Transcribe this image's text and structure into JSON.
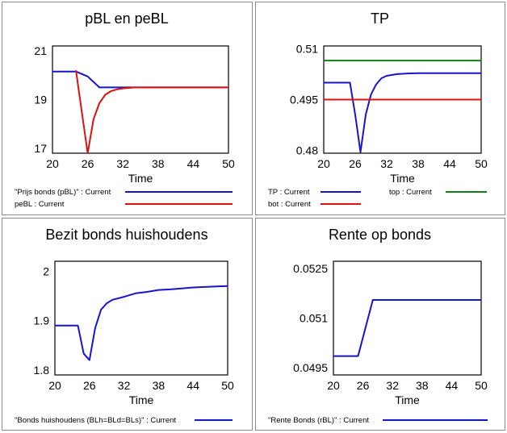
{
  "chart_data": [
    {
      "type": "line",
      "title": "pBL en peBL",
      "xlabel": "Time",
      "xlim": [
        20,
        50
      ],
      "ylim": [
        16.8,
        21.2
      ],
      "xticks": [
        "20",
        "26",
        "32",
        "38",
        "44",
        "50"
      ],
      "yticks": [
        {
          "v": 21,
          "label": "21"
        },
        {
          "v": 19,
          "label": "19"
        },
        {
          "v": 17,
          "label": "17"
        }
      ],
      "series": [
        {
          "name": "\"Prijs bonds (pBL)\" : Current",
          "color": "#1515d0",
          "x": [
            20,
            24,
            26,
            28,
            30,
            32,
            34,
            50
          ],
          "y": [
            20.15,
            20.15,
            19.95,
            19.5,
            19.5,
            19.5,
            19.5,
            19.5
          ]
        },
        {
          "name": "peBL : Current",
          "color": "#e01010",
          "x": [
            24,
            25,
            26,
            27,
            28,
            29,
            30,
            31,
            32,
            33,
            34,
            50
          ],
          "y": [
            20.2,
            18.5,
            16.8,
            18.2,
            18.85,
            19.2,
            19.35,
            19.42,
            19.46,
            19.48,
            19.5,
            19.5
          ]
        }
      ]
    },
    {
      "type": "line",
      "title": "TP",
      "xlabel": "Time",
      "xlim": [
        20,
        50
      ],
      "ylim": [
        0.4792,
        0.5108
      ],
      "xticks": [
        "20",
        "26",
        "32",
        "38",
        "44",
        "50"
      ],
      "yticks": [
        {
          "v": 0.51,
          "label": "0.51"
        },
        {
          "v": 0.495,
          "label": "0.495"
        },
        {
          "v": 0.48,
          "label": "0.48"
        }
      ],
      "series": [
        {
          "name": "TP : Current",
          "color": "#1515d0",
          "x": [
            20,
            25,
            26,
            27,
            28,
            29,
            30,
            31,
            32,
            34,
            36,
            38,
            44,
            50
          ],
          "y": [
            0.5,
            0.5,
            0.4905,
            0.4795,
            0.4905,
            0.4965,
            0.4995,
            0.5013,
            0.502,
            0.5025,
            0.5027,
            0.5028,
            0.5028,
            0.5028
          ]
        },
        {
          "name": "top : Current",
          "color": "#108010",
          "x": [
            20,
            50
          ],
          "y": [
            0.5065,
            0.5065
          ]
        },
        {
          "name": "bot : Current",
          "color": "#e01010",
          "x": [
            20,
            50
          ],
          "y": [
            0.495,
            0.495
          ]
        }
      ]
    },
    {
      "type": "line",
      "title": "Bezit bonds huishoudens",
      "xlabel": "Time",
      "xlim": [
        20,
        50
      ],
      "ylim": [
        1.79,
        2.02
      ],
      "xticks": [
        "20",
        "26",
        "32",
        "38",
        "44",
        "50"
      ],
      "yticks": [
        {
          "v": 2.0,
          "label": "2"
        },
        {
          "v": 1.9,
          "label": "1.9"
        },
        {
          "v": 1.8,
          "label": "1.8"
        }
      ],
      "series": [
        {
          "name": "\"Bonds huishoudens (BLh=BLd=BLs)\" : Current",
          "color": "#1515d0",
          "x": [
            20,
            24,
            25,
            26,
            27,
            28,
            29,
            30,
            32,
            34,
            36,
            38,
            40,
            42,
            44,
            46,
            48,
            50
          ],
          "y": [
            1.89,
            1.89,
            1.833,
            1.82,
            1.885,
            1.922,
            1.935,
            1.942,
            1.948,
            1.955,
            1.958,
            1.962,
            1.963,
            1.965,
            1.967,
            1.968,
            1.969,
            1.97
          ]
        }
      ]
    },
    {
      "type": "line",
      "title": "Rente op bonds",
      "xlabel": "Time",
      "xlim": [
        20,
        50
      ],
      "ylim": [
        0.04928,
        0.05272
      ],
      "xticks": [
        "20",
        "26",
        "32",
        "38",
        "44",
        "50"
      ],
      "yticks": [
        {
          "v": 0.0525,
          "label": "0.0525"
        },
        {
          "v": 0.051,
          "label": "0.051"
        },
        {
          "v": 0.0495,
          "label": "0.0495"
        }
      ],
      "series": [
        {
          "name": "\"Rente Bonds (rBL)\" : Current",
          "color": "#1515d0",
          "x": [
            20,
            25,
            28,
            50
          ],
          "y": [
            0.04985,
            0.04985,
            0.05155,
            0.05155
          ]
        }
      ]
    }
  ]
}
